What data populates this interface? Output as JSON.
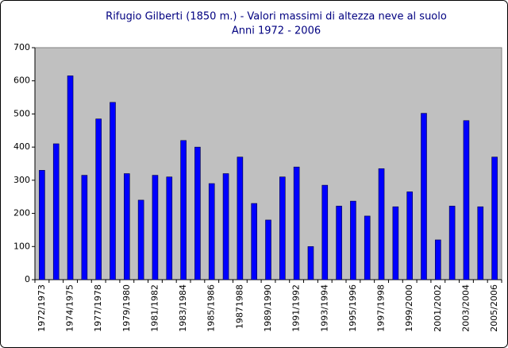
{
  "chart_data": {
    "type": "bar",
    "title": "Rifugio Gilberti (1850 m.) - Valori massimi di altezza neve al suolo",
    "subtitle": "Anni 1972 - 2006",
    "categories": [
      "1972/1973",
      null,
      "1974/1975",
      null,
      "1977/1978",
      null,
      "1979/1980",
      null,
      "1981/1982",
      null,
      "1983/1984",
      null,
      "1985/1986",
      null,
      "19871988",
      null,
      "1989/1990",
      null,
      "1991/1992",
      null,
      "1993/1994",
      null,
      "1995/1996",
      null,
      "1997/1998",
      null,
      "1999/2000",
      null,
      "2001/2002",
      null,
      "2003/2004",
      null,
      "2005/2006"
    ],
    "values": [
      330,
      410,
      615,
      315,
      485,
      535,
      320,
      240,
      315,
      310,
      420,
      400,
      290,
      320,
      370,
      230,
      180,
      310,
      340,
      100,
      285,
      222,
      237,
      192,
      335,
      220,
      265,
      502,
      120,
      222,
      480,
      220,
      370
    ],
    "color": "#0000ff",
    "ylim": [
      0,
      700
    ],
    "yticks": [
      0,
      100,
      200,
      300,
      400,
      500,
      600,
      700
    ],
    "grid": false
  }
}
